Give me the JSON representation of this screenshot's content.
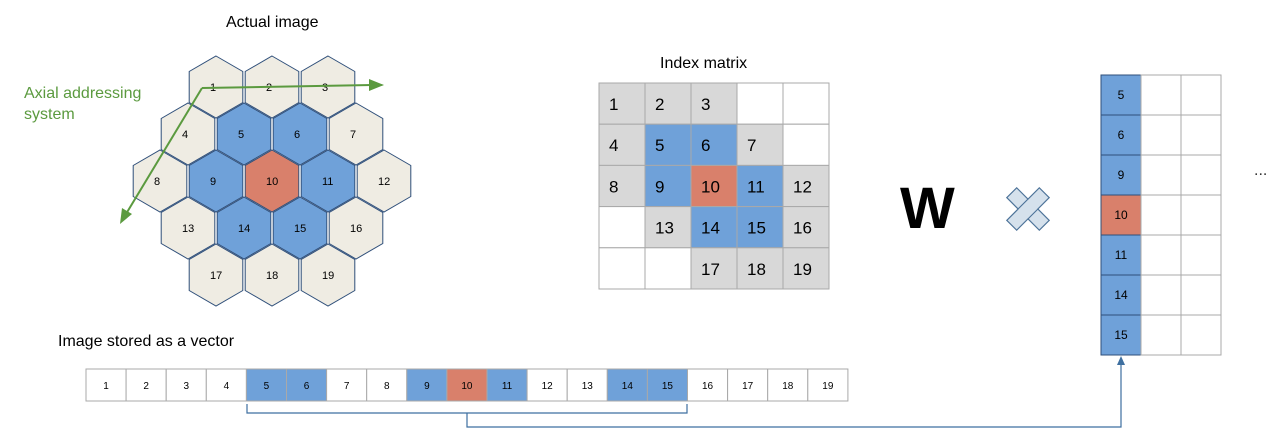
{
  "colors": {
    "blue": "#6fa1d9",
    "red": "#d9806b",
    "beige": "#efece3",
    "gray": "#d8d8d8",
    "green": "#5b9a3f",
    "arrow": "#3e6fa0",
    "line": "#8c8c8c"
  },
  "hexgrid": {
    "title": "Actual image",
    "axial_label_line1": "Axial addressing",
    "axial_label_line2": "system",
    "cells": [
      {
        "label": "1",
        "col": 0,
        "row": 0,
        "color": "beige"
      },
      {
        "label": "2",
        "col": 1,
        "row": 0,
        "color": "beige"
      },
      {
        "label": "3",
        "col": 2,
        "row": 0,
        "color": "beige"
      },
      {
        "label": "4",
        "col": -0.5,
        "row": 1,
        "color": "beige"
      },
      {
        "label": "5",
        "col": 0.5,
        "row": 1,
        "color": "blue"
      },
      {
        "label": "6",
        "col": 1.5,
        "row": 1,
        "color": "blue"
      },
      {
        "label": "7",
        "col": 2.5,
        "row": 1,
        "color": "beige"
      },
      {
        "label": "8",
        "col": -1,
        "row": 2,
        "color": "beige"
      },
      {
        "label": "9",
        "col": 0,
        "row": 2,
        "color": "blue"
      },
      {
        "label": "10",
        "col": 1,
        "row": 2,
        "color": "red"
      },
      {
        "label": "11",
        "col": 2,
        "row": 2,
        "color": "blue"
      },
      {
        "label": "12",
        "col": 3,
        "row": 2,
        "color": "beige"
      },
      {
        "label": "13",
        "col": -0.5,
        "row": 3,
        "color": "beige"
      },
      {
        "label": "14",
        "col": 0.5,
        "row": 3,
        "color": "blue"
      },
      {
        "label": "15",
        "col": 1.5,
        "row": 3,
        "color": "blue"
      },
      {
        "label": "16",
        "col": 2.5,
        "row": 3,
        "color": "beige"
      },
      {
        "label": "17",
        "col": 0,
        "row": 4,
        "color": "beige"
      },
      {
        "label": "18",
        "col": 1,
        "row": 4,
        "color": "beige"
      },
      {
        "label": "19",
        "col": 2,
        "row": 4,
        "color": "beige"
      }
    ]
  },
  "index_matrix": {
    "title": "Index matrix",
    "rows": [
      [
        {
          "v": "1",
          "c": "gray"
        },
        {
          "v": "2",
          "c": "gray"
        },
        {
          "v": "3",
          "c": "gray"
        },
        {
          "v": "",
          "c": "white"
        },
        {
          "v": "",
          "c": "white"
        }
      ],
      [
        {
          "v": "4",
          "c": "gray"
        },
        {
          "v": "5",
          "c": "blue"
        },
        {
          "v": "6",
          "c": "blue"
        },
        {
          "v": "7",
          "c": "gray"
        },
        {
          "v": "",
          "c": "white"
        }
      ],
      [
        {
          "v": "8",
          "c": "gray"
        },
        {
          "v": "9",
          "c": "blue"
        },
        {
          "v": "10",
          "c": "red"
        },
        {
          "v": "11",
          "c": "blue"
        },
        {
          "v": "12",
          "c": "gray"
        }
      ],
      [
        {
          "v": "",
          "c": "white"
        },
        {
          "v": "13",
          "c": "gray"
        },
        {
          "v": "14",
          "c": "blue"
        },
        {
          "v": "15",
          "c": "blue"
        },
        {
          "v": "16",
          "c": "gray"
        }
      ],
      [
        {
          "v": "",
          "c": "white"
        },
        {
          "v": "",
          "c": "white"
        },
        {
          "v": "17",
          "c": "gray"
        },
        {
          "v": "18",
          "c": "gray"
        },
        {
          "v": "19",
          "c": "gray"
        }
      ]
    ]
  },
  "vector": {
    "title": "Image stored as a vector",
    "cells": [
      {
        "v": "1",
        "c": "white"
      },
      {
        "v": "2",
        "c": "white"
      },
      {
        "v": "3",
        "c": "white"
      },
      {
        "v": "4",
        "c": "white"
      },
      {
        "v": "5",
        "c": "blue"
      },
      {
        "v": "6",
        "c": "blue"
      },
      {
        "v": "7",
        "c": "white"
      },
      {
        "v": "8",
        "c": "white"
      },
      {
        "v": "9",
        "c": "blue"
      },
      {
        "v": "10",
        "c": "red"
      },
      {
        "v": "11",
        "c": "blue"
      },
      {
        "v": "12",
        "c": "white"
      },
      {
        "v": "13",
        "c": "white"
      },
      {
        "v": "14",
        "c": "blue"
      },
      {
        "v": "15",
        "c": "blue"
      },
      {
        "v": "16",
        "c": "white"
      },
      {
        "v": "17",
        "c": "white"
      },
      {
        "v": "18",
        "c": "white"
      },
      {
        "v": "19",
        "c": "white"
      }
    ]
  },
  "operator": {
    "w_label": "W",
    "ellipsis": "..."
  },
  "column_matrix": {
    "values": [
      "5",
      "6",
      "9",
      "10",
      "11",
      "14",
      "15"
    ],
    "colors": [
      "blue",
      "blue",
      "blue",
      "red",
      "blue",
      "blue",
      "blue"
    ]
  }
}
